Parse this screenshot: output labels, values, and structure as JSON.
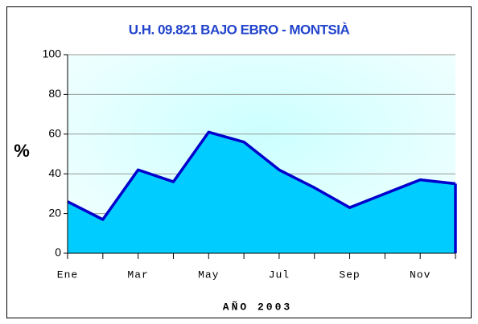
{
  "chart_data": {
    "type": "area",
    "title": "U.H. 09.821 BAJO EBRO - MONTSIÀ",
    "ylabel": "%",
    "xlabel": "AÑO 2003",
    "categories": [
      "Ene",
      null,
      "Mar",
      null,
      "May",
      null,
      "Jul",
      null,
      "Sep",
      null,
      "Nov",
      null
    ],
    "values": [
      26,
      17,
      42,
      36,
      61,
      56,
      42,
      33,
      23,
      30,
      37,
      35
    ],
    "color": "#00ccff",
    "edge_color": "#0000cc",
    "ylim": [
      0,
      100
    ],
    "yticks": [
      0,
      20,
      40,
      60,
      80,
      100
    ],
    "grid": true
  }
}
